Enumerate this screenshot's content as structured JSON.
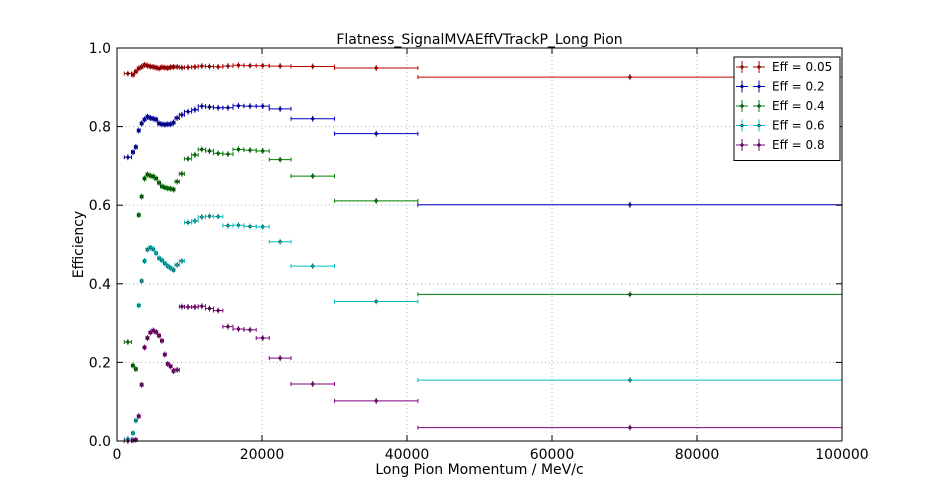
{
  "chart_data": {
    "type": "scatter",
    "title": "Flatness_SignalMVAEffVTrackP_Long Pion",
    "xlabel": "Long Pion Momentum / MeV/c",
    "ylabel": "Efficiency",
    "xlim": [
      0,
      100000
    ],
    "ylim": [
      0.0,
      1.0
    ],
    "xticks": [
      "0",
      "20000",
      "40000",
      "60000",
      "80000",
      "100000"
    ],
    "yticks": [
      "0.0",
      "0.2",
      "0.4",
      "0.6",
      "0.8",
      "1.0"
    ],
    "grid": true,
    "legend_position": "top-right",
    "bins": [
      [
        1000,
        2000
      ],
      [
        2000,
        2400
      ],
      [
        2400,
        2800
      ],
      [
        2800,
        3200
      ],
      [
        3200,
        3600
      ],
      [
        3600,
        4000
      ],
      [
        4000,
        4400
      ],
      [
        4400,
        4800
      ],
      [
        4800,
        5200
      ],
      [
        5200,
        5600
      ],
      [
        5600,
        6000
      ],
      [
        6000,
        6400
      ],
      [
        6400,
        6800
      ],
      [
        6800,
        7200
      ],
      [
        7200,
        7600
      ],
      [
        7600,
        8000
      ],
      [
        8000,
        8600
      ],
      [
        8600,
        9300
      ],
      [
        9300,
        10300
      ],
      [
        10300,
        11200
      ],
      [
        11200,
        12200
      ],
      [
        12200,
        13300
      ],
      [
        13300,
        14600
      ],
      [
        14600,
        16000
      ],
      [
        16000,
        17500
      ],
      [
        17500,
        19200
      ],
      [
        19200,
        21000
      ],
      [
        21000,
        24000
      ],
      [
        24000,
        30000
      ],
      [
        30000,
        41500
      ],
      [
        41500,
        100000
      ]
    ],
    "series": [
      {
        "name": "Eff = 0.05",
        "color": "#bf0000",
        "values": [
          0.935,
          0.932,
          0.94,
          0.948,
          0.952,
          0.957,
          0.955,
          0.953,
          0.952,
          0.95,
          0.948,
          0.951,
          0.95,
          0.949,
          0.951,
          0.952,
          0.952,
          0.95,
          0.951,
          0.952,
          0.954,
          0.953,
          0.952,
          0.954,
          0.956,
          0.955,
          0.955,
          0.954,
          0.953,
          0.949,
          0.926
        ]
      },
      {
        "name": "Eff = 0.2",
        "color": "#0000bf",
        "values": [
          0.722,
          0.735,
          0.748,
          0.79,
          0.808,
          0.818,
          0.825,
          0.822,
          0.82,
          0.818,
          0.808,
          0.806,
          0.805,
          0.806,
          0.806,
          0.81,
          0.822,
          0.83,
          0.838,
          0.843,
          0.852,
          0.85,
          0.848,
          0.848,
          0.853,
          0.852,
          0.852,
          0.845,
          0.82,
          0.782,
          0.601
        ]
      },
      {
        "name": "Eff = 0.4",
        "color": "#007f00",
        "values": [
          0.252,
          0.192,
          0.183,
          0.575,
          0.622,
          0.668,
          0.678,
          0.675,
          0.673,
          0.668,
          0.657,
          0.648,
          0.645,
          0.643,
          0.642,
          0.64,
          0.66,
          0.68,
          0.718,
          0.728,
          0.742,
          0.738,
          0.732,
          0.73,
          0.742,
          0.74,
          0.738,
          0.716,
          0.674,
          0.611,
          0.373
        ]
      },
      {
        "name": "Eff = 0.6",
        "color": "#00bfbf",
        "values": [
          0.005,
          0.02,
          0.052,
          0.345,
          0.407,
          0.458,
          0.487,
          0.492,
          0.488,
          0.478,
          0.465,
          0.46,
          0.452,
          0.445,
          0.44,
          0.435,
          0.448,
          0.458,
          0.556,
          0.56,
          0.57,
          0.572,
          0.571,
          0.548,
          0.549,
          0.546,
          0.545,
          0.507,
          0.445,
          0.355,
          0.155
        ]
      },
      {
        "name": "Eff = 0.8",
        "color": "#7f007f",
        "values": [
          0.0,
          0.002,
          0.003,
          0.063,
          0.143,
          0.238,
          0.262,
          0.276,
          0.281,
          0.277,
          0.268,
          0.255,
          0.22,
          0.196,
          0.19,
          0.178,
          0.181,
          0.342,
          0.341,
          0.341,
          0.343,
          0.337,
          0.332,
          0.291,
          0.285,
          0.283,
          0.262,
          0.211,
          0.145,
          0.102,
          0.034
        ]
      }
    ]
  }
}
